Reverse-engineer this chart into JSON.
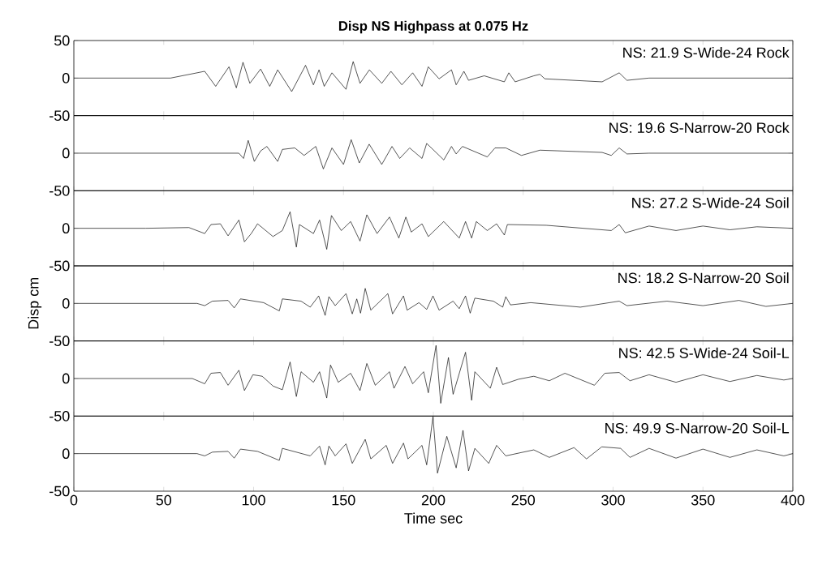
{
  "chart_data": [
    {
      "type": "line",
      "title": "Disp NS Highpass at 0.075 Hz",
      "xlim": [
        0,
        400
      ],
      "ylim": [
        -50,
        50
      ],
      "xticks": [
        0,
        50,
        100,
        150,
        200,
        250,
        300,
        350,
        400
      ],
      "yticks": [
        -50,
        0,
        50
      ],
      "tick_labels": "y",
      "annotations": [
        "NS: 21.9  S-Wide-24 Rock"
      ],
      "series": [
        {
          "color": "#000000",
          "x": [
            0,
            53.8,
            72.8,
            78.9,
            86.3,
            90.4,
            94.1,
            97.9,
            103.9,
            109,
            113.4,
            121.2,
            128.9,
            133.3,
            136.4,
            139.3,
            143.6,
            151.4,
            155.4,
            159.2,
            164.4,
            171.3,
            176.4,
            182.5,
            188.5,
            193.7,
            197.2,
            203.2,
            210.1,
            212.7,
            217,
            219.6,
            228.3,
            239.5,
            242,
            245.5,
            255.9,
            259.3,
            262,
            293.9,
            303.4,
            307.7,
            320,
            400
          ],
          "values": [
            0,
            0,
            9,
            -11,
            15,
            -13,
            21,
            -7,
            12,
            -11,
            11,
            -18,
            17,
            -9,
            11,
            -11,
            7,
            -15,
            22,
            -7,
            11,
            -7,
            9,
            -9,
            7,
            -11,
            15,
            -1,
            11,
            -9,
            9,
            -3,
            3,
            -5,
            7,
            -5,
            3,
            5,
            -1,
            -5,
            7,
            -3,
            0,
            0
          ]
        }
      ]
    },
    {
      "type": "line",
      "xlim": [
        0,
        400
      ],
      "ylim": [
        -50,
        50
      ],
      "xticks": [
        0,
        50,
        100,
        150,
        200,
        250,
        300,
        350,
        400
      ],
      "yticks": [
        -50,
        0
      ],
      "tick_labels": "y",
      "annotations": [
        "NS: 19.6  S-Narrow-20 Rock"
      ],
      "series": [
        {
          "color": "#000000",
          "x": [
            0,
            91.8,
            94.4,
            97,
            100.4,
            103.9,
            107.4,
            113.4,
            116,
            122.9,
            128.1,
            134.6,
            138.8,
            143.6,
            150,
            154.3,
            158.8,
            164.3,
            171.3,
            177,
            181.3,
            186.8,
            193.7,
            196.3,
            205.8,
            210.1,
            212.7,
            216.2,
            230,
            234.3,
            240.3,
            249,
            259.3,
            293.9,
            299,
            303.4,
            307.7,
            320,
            400
          ],
          "values": [
            0,
            0,
            -7,
            17,
            -11,
            3,
            9,
            -11,
            5,
            7,
            -3,
            9,
            -21,
            7,
            -15,
            18,
            -13,
            12,
            -15,
            9,
            -7,
            7,
            -7,
            13,
            -9,
            9,
            -1,
            9,
            -5,
            7,
            7,
            -3,
            4,
            1,
            -3,
            7,
            -1,
            0,
            0
          ]
        }
      ]
    },
    {
      "type": "line",
      "xlim": [
        0,
        400
      ],
      "ylim": [
        -50,
        50
      ],
      "xticks": [
        0,
        50,
        100,
        150,
        200,
        250,
        300,
        350,
        400
      ],
      "yticks": [
        -50,
        0
      ],
      "tick_labels": "y",
      "annotations": [
        "NS: 27.2  S-Wide-24 Soil"
      ],
      "series": [
        {
          "color": "#000000",
          "x": [
            0,
            40,
            64,
            72.8,
            76.3,
            81.5,
            85.8,
            91.8,
            94.9,
            98.7,
            102.2,
            110.8,
            116,
            120.3,
            123.8,
            125.5,
            133.3,
            136.7,
            140.7,
            143.3,
            148.8,
            154,
            159.2,
            163,
            168.7,
            175.6,
            180.8,
            184.7,
            187.7,
            193.7,
            197.2,
            205.8,
            214.4,
            217.9,
            221.3,
            223.9,
            230,
            235.2,
            239.5,
            241.2,
            262.8,
            273.2,
            299,
            303.4,
            306.8,
            320,
            335,
            350,
            365,
            380,
            400
          ],
          "values": [
            0,
            0,
            1,
            -7,
            5,
            6,
            -10,
            11,
            -18,
            -7,
            6,
            -11,
            -3,
            22,
            -25,
            5,
            -7,
            11,
            -28,
            17,
            -3,
            9,
            -17,
            18,
            -7,
            15,
            -13,
            15,
            -5,
            6,
            -11,
            9,
            -13,
            9,
            -13,
            9,
            -3,
            6,
            -9,
            5,
            4,
            2,
            -3,
            5,
            -6,
            3,
            -3,
            3,
            -2,
            2,
            0
          ]
        }
      ]
    },
    {
      "type": "line",
      "xlim": [
        0,
        400
      ],
      "ylim": [
        -50,
        50
      ],
      "xticks": [
        0,
        50,
        100,
        150,
        200,
        250,
        300,
        350,
        400
      ],
      "yticks": [
        -50,
        0
      ],
      "tick_labels": "y",
      "ylabel": "Disp cm",
      "annotations": [
        "NS: 18.2  S-Narrow-20 Soil"
      ],
      "series": [
        {
          "color": "#000000",
          "x": [
            0,
            68.5,
            72.8,
            77.1,
            85.8,
            89.2,
            92.7,
            105.6,
            114.3,
            116,
            126.4,
            131.5,
            136.2,
            139.8,
            141.9,
            145.4,
            151.4,
            154.9,
            157.4,
            159.5,
            162.1,
            165.2,
            174.7,
            177.3,
            183.4,
            185.4,
            192,
            196.3,
            199.8,
            203.2,
            211,
            214.4,
            217.9,
            220.5,
            223.1,
            233.4,
            238.6,
            240.3,
            242.9,
            254.2,
            281.8,
            303.4,
            307.7,
            330,
            350,
            370,
            385,
            400
          ],
          "values": [
            0,
            0,
            -3,
            3,
            4,
            -6,
            6,
            1,
            -10,
            6,
            3,
            -5,
            10,
            -16,
            9,
            -3,
            13,
            -14,
            6,
            -13,
            20,
            -9,
            13,
            -14,
            10,
            -9,
            1,
            -8,
            10,
            -9,
            3,
            -7,
            10,
            -13,
            7,
            3,
            -5,
            9,
            -2,
            1,
            -5,
            3,
            -3,
            3,
            -3,
            4,
            -4,
            0
          ]
        }
      ]
    },
    {
      "type": "line",
      "xlim": [
        0,
        400
      ],
      "ylim": [
        -50,
        50
      ],
      "xticks": [
        0,
        50,
        100,
        150,
        200,
        250,
        300,
        350,
        400
      ],
      "yticks": [
        -50,
        0
      ],
      "tick_labels": "y",
      "annotations": [
        "NS: 42.5  S-Wide-24 Soil-L"
      ],
      "series": [
        {
          "color": "#000000",
          "x": [
            0,
            65.9,
            72.8,
            76.3,
            81.5,
            85.8,
            91.8,
            94.9,
            99.6,
            104.8,
            110.8,
            116,
            120.3,
            123.8,
            126.4,
            133.3,
            136.7,
            140.7,
            142.8,
            147.1,
            154,
            159.2,
            163,
            167.7,
            175.6,
            178.1,
            184.2,
            188.5,
            194.6,
            197.2,
            201.5,
            204.1,
            208.4,
            211,
            217.9,
            221.3,
            223.1,
            231.7,
            235.2,
            238.6,
            247.3,
            255.9,
            264.5,
            273.2,
            289.6,
            295.4,
            303.4,
            309.4,
            320,
            335,
            350,
            365,
            380,
            395,
            400
          ],
          "values": [
            0,
            0,
            -7,
            7,
            8,
            -9,
            11,
            -16,
            5,
            3,
            -10,
            -15,
            22,
            -24,
            9,
            -5,
            9,
            -26,
            18,
            -5,
            7,
            -16,
            20,
            -9,
            9,
            -13,
            16,
            -7,
            9,
            -19,
            44,
            -33,
            28,
            -21,
            35,
            -29,
            9,
            -13,
            15,
            -8,
            -1,
            3,
            -3,
            7,
            -9,
            7,
            8,
            -3,
            5,
            -5,
            5,
            -4,
            4,
            -2,
            0
          ]
        }
      ]
    },
    {
      "type": "line",
      "xlim": [
        0,
        400
      ],
      "ylim": [
        -50,
        50
      ],
      "xticks": [
        0,
        50,
        100,
        150,
        200,
        250,
        300,
        350,
        400
      ],
      "yticks": [
        -50,
        0
      ],
      "xlabel": "Time  sec",
      "annotations": [
        "NS: 49.9  S-Narrow-20 Soil-L"
      ],
      "series": [
        {
          "color": "#000000",
          "x": [
            0,
            68.5,
            72.8,
            77.1,
            85.8,
            89.2,
            92.7,
            102.2,
            114.3,
            116,
            131.5,
            136.7,
            139.8,
            141.9,
            145.4,
            151.4,
            154.9,
            162.1,
            165.2,
            173.8,
            177.3,
            183.4,
            185.9,
            193.7,
            196.3,
            199.8,
            202.3,
            207.5,
            212.7,
            216.5,
            219.6,
            223.1,
            230.8,
            235.2,
            240.3,
            255.9,
            264.5,
            278.3,
            285.2,
            293.7,
            304.2,
            309.4,
            320,
            335,
            350,
            365,
            380,
            395,
            400
          ],
          "values": [
            0,
            0,
            -3,
            2,
            3,
            -6,
            6,
            3,
            -9,
            7,
            -3,
            10,
            -15,
            10,
            -3,
            13,
            -13,
            19,
            -7,
            11,
            -13,
            14,
            -7,
            11,
            -15,
            49,
            -26,
            23,
            -19,
            31,
            -23,
            7,
            -13,
            11,
            -3,
            5,
            -5,
            8,
            -7,
            9,
            7,
            -5,
            7,
            -6,
            6,
            -5,
            5,
            -3,
            0
          ]
        }
      ]
    }
  ]
}
